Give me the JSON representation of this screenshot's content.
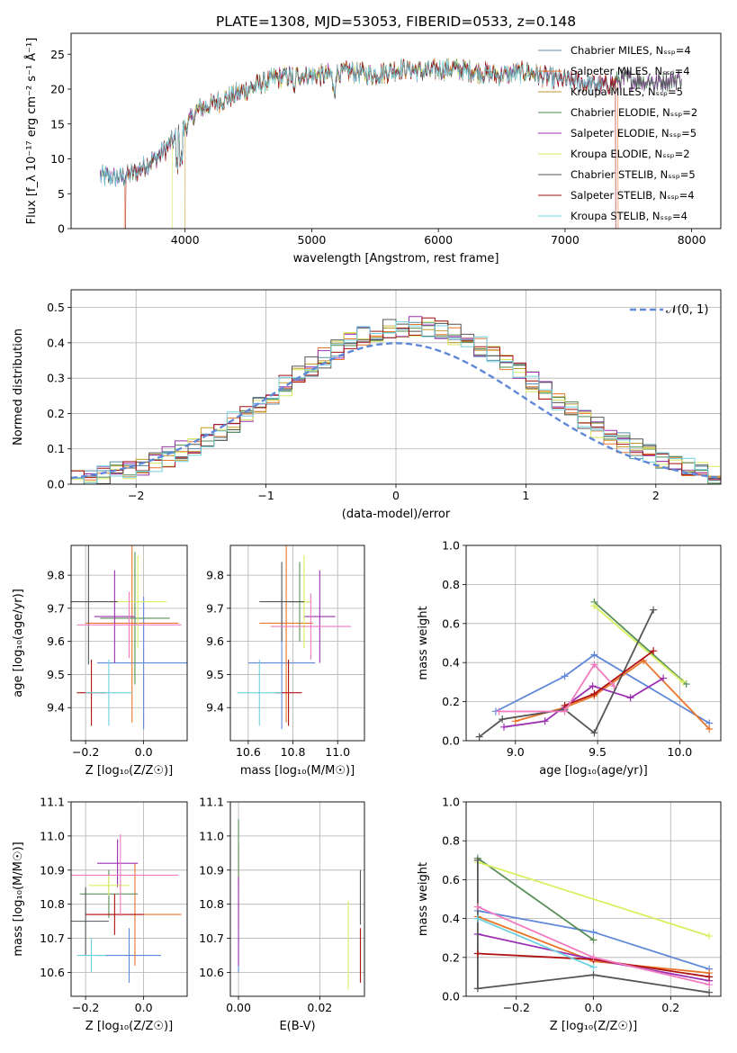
{
  "figure": {
    "title": "PLATE=1308, MJD=53053, FIBERID=0533, z=0.148",
    "model_colors": [
      "#5a8fa8",
      "#e8762b",
      "#c29b2b",
      "#4f8a4f",
      "#9b30b0",
      "#d8e860",
      "#555555",
      "#a01010",
      "#70d0e0"
    ],
    "colors_panels": [
      "#5f88d8",
      "#e8762b",
      "#5a8f5a",
      "#9b30b0",
      "#d8f060",
      "#555555",
      "#b01010",
      "#f07bc0",
      "#70d0e0"
    ]
  },
  "chart_data": [
    {
      "id": "spectrum",
      "type": "line",
      "title": "PLATE=1308, MJD=53053, FIBERID=0533, z=0.148",
      "xlabel": "wavelength [Angstrom, rest frame]",
      "ylabel": "Flux [f_λ 10⁻¹⁷ erg cm⁻² s⁻¹ Å⁻¹]",
      "xlim": [
        3100,
        8230
      ],
      "ylim": [
        0,
        28
      ],
      "xticks": [
        4000,
        5000,
        6000,
        7000,
        8000
      ],
      "yticks": [
        0,
        5,
        10,
        15,
        20,
        25
      ],
      "grid": false,
      "legend_position": "top-right",
      "series_envelope": {
        "x": [
          3330,
          3500,
          3600,
          3800,
          4000,
          4100,
          4300,
          4500,
          4700,
          4900,
          5100,
          5300,
          5500,
          5700,
          5900,
          6100,
          6300,
          6500,
          6700,
          6900,
          7100,
          7300,
          7500,
          7700,
          7920
        ],
        "y": [
          7.5,
          7.4,
          8.0,
          10.5,
          14.5,
          17.0,
          18.5,
          20.0,
          21.5,
          22.0,
          22.0,
          22.5,
          22.0,
          23.0,
          22.5,
          23.0,
          22.5,
          22.0,
          22.5,
          21.5,
          21.0,
          20.5,
          21.5,
          21.0,
          21.5
        ]
      },
      "series": [
        {
          "name": "Chabrier MILES, N_SSP=4"
        },
        {
          "name": "Salpeter MILES, N_SSP=4"
        },
        {
          "name": "Kroupa MILES, N_SSP=5"
        },
        {
          "name": "Chabrier ELODIE, N_SSP=2"
        },
        {
          "name": "Salpeter ELODIE, N_SSP=5"
        },
        {
          "name": "Kroupa ELODIE, N_SSP=2"
        },
        {
          "name": "Chabrier STELIB, N_SSP=5"
        },
        {
          "name": "Salpeter STELIB, N_SSP=4"
        },
        {
          "name": "Kroupa STELIB, N_SSP=4"
        }
      ]
    },
    {
      "id": "residuals",
      "type": "line",
      "xlabel": "(data-model)/error",
      "ylabel": "Normed distribution",
      "xlim": [
        -2.5,
        2.5
      ],
      "ylim": [
        0,
        0.55
      ],
      "xticks": [
        -2,
        -1,
        0,
        1,
        2
      ],
      "yticks": [
        0.0,
        0.1,
        0.2,
        0.3,
        0.4,
        0.5
      ],
      "grid": true,
      "legend_position": "top-right",
      "gaussian_label": "𝒩(0, 1)",
      "bin_width": 0.1
    },
    {
      "id": "age_Z",
      "type": "scatter",
      "xlabel": "Z [log₁₀(Z/Z☉)]",
      "ylabel": "age [log₁₀(age/yr)]",
      "xlim": [
        -0.25,
        0.15
      ],
      "ylim": [
        9.3,
        9.89
      ],
      "xticks": [
        -0.2,
        0.0
      ],
      "yticks": [
        9.4,
        9.5,
        9.6,
        9.7,
        9.8
      ],
      "grid": true,
      "points": [
        {
          "x": 0.0,
          "y": 9.535,
          "xerr": 0.16,
          "yerr": 0.2
        },
        {
          "x": -0.04,
          "y": 9.655,
          "xerr": 0.16,
          "yerr": 0.3
        },
        {
          "x": -0.03,
          "y": 9.67,
          "xerr": 0.12,
          "yerr": 0.2
        },
        {
          "x": -0.1,
          "y": 9.675,
          "xerr": 0.07,
          "yerr": 0.14
        },
        {
          "x": -0.02,
          "y": 9.72,
          "xerr": 0.1,
          "yerr": 0.14
        },
        {
          "x": -0.19,
          "y": 9.72,
          "xerr": 0.1,
          "yerr": 0.19
        },
        {
          "x": -0.18,
          "y": 9.445,
          "xerr": 0.05,
          "yerr": 0.1
        },
        {
          "x": -0.05,
          "y": 9.65,
          "xerr": 0.18,
          "yerr": 0.1
        },
        {
          "x": -0.12,
          "y": 9.445,
          "xerr": 0.08,
          "yerr": 0.1
        }
      ]
    },
    {
      "id": "age_mass",
      "type": "scatter",
      "xlabel": "mass [log₁₀(M/M☉)]",
      "ylabel": "",
      "xlim": [
        10.52,
        11.12
      ],
      "ylim": [
        9.3,
        9.89
      ],
      "xticks": [
        10.6,
        10.8,
        11.0
      ],
      "yticks": [
        9.4,
        9.5,
        9.6,
        9.7,
        9.8
      ],
      "grid": true,
      "points": [
        {
          "x": 10.75,
          "y": 9.535,
          "xerr": 0.15,
          "yerr": 0.2
        },
        {
          "x": 10.77,
          "y": 9.655,
          "xerr": 0.12,
          "yerr": 0.3
        },
        {
          "x": 10.83,
          "y": 9.72,
          "xerr": 0.05,
          "yerr": 0.12
        },
        {
          "x": 10.92,
          "y": 9.675,
          "xerr": 0.07,
          "yerr": 0.14
        },
        {
          "x": 10.85,
          "y": 9.72,
          "xerr": 0.03,
          "yerr": 0.14
        },
        {
          "x": 10.75,
          "y": 9.72,
          "xerr": 0.1,
          "yerr": 0.12
        },
        {
          "x": 10.78,
          "y": 9.445,
          "xerr": 0.06,
          "yerr": 0.1
        },
        {
          "x": 10.88,
          "y": 9.645,
          "xerr": 0.18,
          "yerr": 0.1
        },
        {
          "x": 10.65,
          "y": 9.445,
          "xerr": 0.1,
          "yerr": 0.1
        }
      ]
    },
    {
      "id": "weight_age",
      "type": "line",
      "xlabel": "age [log₁₀(age/yr)]",
      "ylabel": "mass weight",
      "xlim": [
        8.7,
        10.25
      ],
      "ylim": [
        0,
        1.0
      ],
      "xticks": [
        9.0,
        9.5,
        10.0
      ],
      "yticks": [
        0.0,
        0.2,
        0.4,
        0.6,
        0.8,
        1.0
      ],
      "grid": true,
      "series": [
        {
          "x": [
            8.88,
            9.3,
            9.48,
            10.18
          ],
          "y": [
            0.15,
            0.33,
            0.44,
            0.09
          ]
        },
        {
          "x": [
            9.0,
            9.3,
            9.48,
            9.78,
            10.18
          ],
          "y": [
            0.1,
            0.17,
            0.23,
            0.41,
            0.06
          ]
        },
        {
          "x": [
            9.48,
            10.04
          ],
          "y": [
            0.71,
            0.29
          ]
        },
        {
          "x": [
            8.93,
            9.18,
            9.47,
            9.7,
            9.9
          ],
          "y": [
            0.07,
            0.1,
            0.28,
            0.22,
            0.32
          ]
        },
        {
          "x": [
            9.48,
            10.02
          ],
          "y": [
            0.69,
            0.3
          ]
        },
        {
          "x": [
            8.78,
            8.92,
            9.3,
            9.48,
            9.84
          ],
          "y": [
            0.02,
            0.11,
            0.16,
            0.04,
            0.67
          ]
        },
        {
          "x": [
            9.3,
            9.48,
            9.84
          ],
          "y": [
            0.18,
            0.24,
            0.46
          ]
        },
        {
          "x": [
            8.9,
            9.3,
            9.48,
            9.6
          ],
          "y": [
            0.15,
            0.15,
            0.39,
            0.28
          ]
        }
      ]
    },
    {
      "id": "mass_Z",
      "type": "scatter",
      "xlabel": "Z [log₁₀(Z/Z☉)]",
      "ylabel": "mass [log₁₀(M/M☉)]",
      "xlim": [
        -0.25,
        0.15
      ],
      "ylim": [
        10.53,
        11.1
      ],
      "xticks": [
        -0.2,
        0.0
      ],
      "yticks": [
        10.6,
        10.7,
        10.8,
        10.9,
        11.0,
        11.1
      ],
      "grid": true,
      "points": [
        {
          "x": -0.05,
          "y": 10.65,
          "xerr": 0.11,
          "yerr": 0.08
        },
        {
          "x": -0.03,
          "y": 10.77,
          "xerr": 0.16,
          "yerr": 0.15
        },
        {
          "x": -0.12,
          "y": 10.83,
          "xerr": 0.1,
          "yerr": 0.07
        },
        {
          "x": -0.09,
          "y": 10.92,
          "xerr": 0.07,
          "yerr": 0.07
        },
        {
          "x": -0.12,
          "y": 10.855,
          "xerr": 0.07,
          "yerr": 0.03
        },
        {
          "x": -0.2,
          "y": 10.75,
          "xerr": 0.08,
          "yerr": 0.1
        },
        {
          "x": -0.1,
          "y": 10.77,
          "xerr": 0.1,
          "yerr": 0.06
        },
        {
          "x": -0.08,
          "y": 10.885,
          "xerr": 0.2,
          "yerr": 0.12
        },
        {
          "x": -0.18,
          "y": 10.65,
          "xerr": 0.05,
          "yerr": 0.05
        }
      ]
    },
    {
      "id": "mass_ebv",
      "type": "scatter",
      "xlabel": "E(B-V)",
      "ylabel": "",
      "xlim": [
        -0.002,
        0.031
      ],
      "ylim": [
        10.53,
        11.1
      ],
      "xticks": [
        0.0,
        0.02
      ],
      "yticks": [
        10.6,
        10.7,
        10.8,
        10.9,
        11.0,
        11.1
      ],
      "grid": true,
      "points": [
        {
          "x": 0.0,
          "y": 10.65,
          "yerr": 0.05
        },
        {
          "x": 0.0,
          "y": 10.85,
          "yerr": 0.12
        },
        {
          "x": 0.0,
          "y": 10.95,
          "yerr": 0.1
        },
        {
          "x": 0.0,
          "y": 10.75,
          "yerr": 0.13
        },
        {
          "x": 0.027,
          "y": 10.68,
          "yerr": 0.13
        },
        {
          "x": 0.03,
          "y": 10.82,
          "yerr": 0.08
        },
        {
          "x": 0.03,
          "y": 10.65,
          "yerr": 0.08
        }
      ]
    },
    {
      "id": "weight_Z",
      "type": "line",
      "xlabel": "Z [log₁₀(Z/Z☉)]",
      "ylabel": "mass weight",
      "xlim": [
        -0.33,
        0.33
      ],
      "ylim": [
        0,
        1.0
      ],
      "xticks": [
        -0.2,
        0.0,
        0.2
      ],
      "yticks": [
        0.0,
        0.2,
        0.4,
        0.6,
        0.8,
        1.0
      ],
      "grid": true,
      "series": [
        {
          "x": [
            -0.3,
            0.0,
            0.3
          ],
          "y": [
            0.44,
            0.33,
            0.14
          ]
        },
        {
          "x": [
            -0.3,
            0.0,
            0.3
          ],
          "y": [
            0.41,
            0.18,
            0.12
          ]
        },
        {
          "x": [
            -0.3,
            0.0
          ],
          "y": [
            0.71,
            0.29
          ]
        },
        {
          "x": [
            -0.3,
            0.0,
            0.3
          ],
          "y": [
            0.32,
            0.19,
            0.08
          ]
        },
        {
          "x": [
            -0.3,
            0.3
          ],
          "y": [
            0.69,
            0.31
          ]
        },
        {
          "x": [
            -0.3,
            -0.3,
            0.0,
            0.3
          ],
          "y": [
            0.7,
            0.04,
            0.11,
            0.02
          ]
        },
        {
          "x": [
            -0.3,
            0.0,
            0.3
          ],
          "y": [
            0.22,
            0.19,
            0.1
          ]
        },
        {
          "x": [
            -0.3,
            0.0,
            0.3
          ],
          "y": [
            0.46,
            0.2,
            0.06
          ]
        },
        {
          "x": [
            -0.3,
            0.0
          ],
          "y": [
            0.4,
            0.15
          ]
        }
      ]
    }
  ]
}
